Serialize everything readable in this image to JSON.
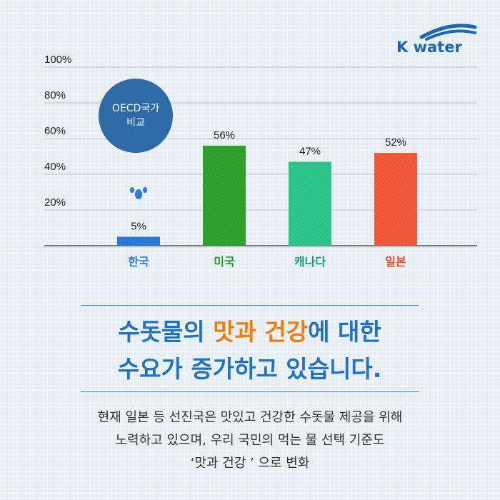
{
  "logo": {
    "text": "K water"
  },
  "badge": {
    "line1": "OECD국가",
    "line2": "비교"
  },
  "headline": {
    "line1_a": "수돗물의 ",
    "line1_hl1": "맛과",
    "line1_b": " ",
    "line1_hl2": "건강",
    "line1_c": "에 대한",
    "line2": "수요가 증가하고 있습니다."
  },
  "body": {
    "line1": "현재 일본 등 선진국은 맛있고 건강한 수돗물 제공을 위해",
    "line2": "노력하고 있으며, 우리 국민의 먹는 물 선택 기준도",
    "line3": "‘맛과 건강 ’ 으로 변화"
  },
  "chart_data": {
    "type": "bar",
    "categories": [
      "한국",
      "미국",
      "캐나다",
      "일본"
    ],
    "values": [
      5,
      56,
      47,
      52
    ],
    "value_labels": [
      "5%",
      "56%",
      "47%",
      "52%"
    ],
    "yticks": [
      "20%",
      "40%",
      "60%",
      "80%",
      "100%"
    ],
    "ylim": [
      0,
      100
    ],
    "grid": true,
    "colors": [
      "#2a7de0",
      "#2fa52f",
      "#2dc98f",
      "#f55a3c"
    ],
    "label_colors": [
      "#2a7de0",
      "#2a9a2a",
      "#1a9c7c",
      "#f0492b"
    ]
  }
}
